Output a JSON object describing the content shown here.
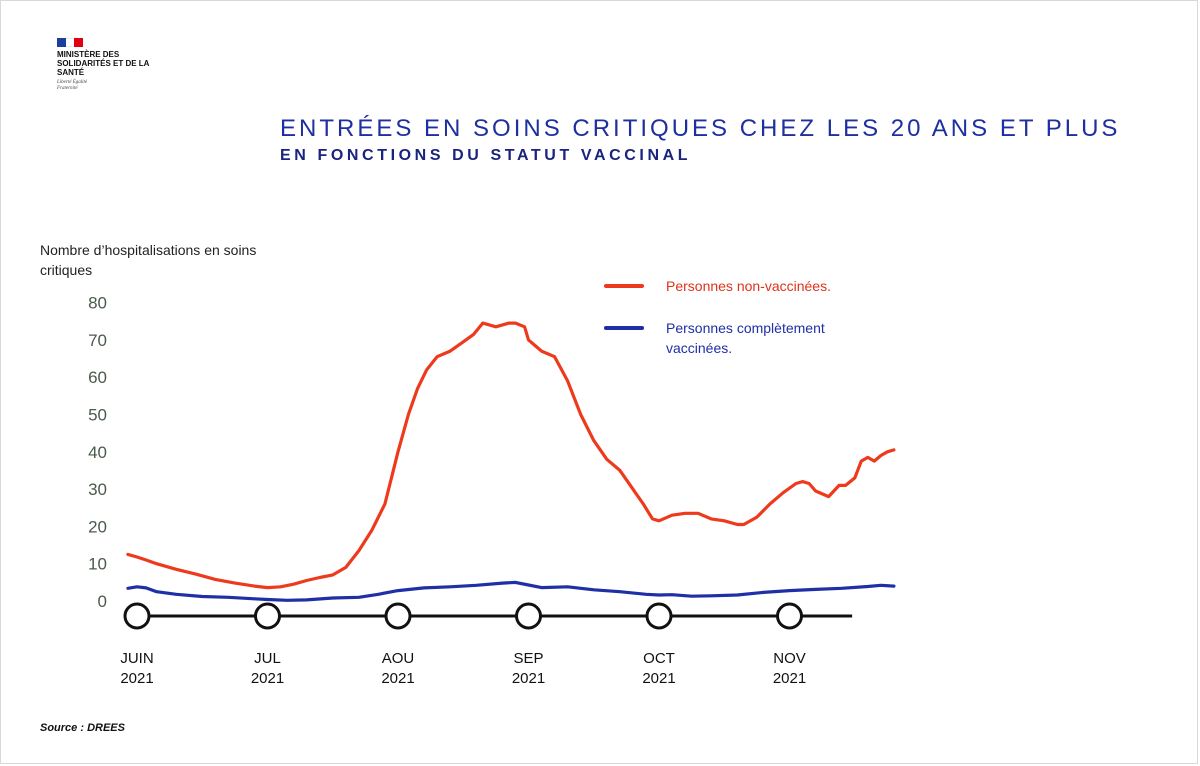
{
  "logo": {
    "ministry": "MINISTÈRE DES SOLIDARITÉS ET DE LA SANTÉ",
    "motto": "Liberté Égalité Fraternité"
  },
  "title": {
    "line1": "ENTRÉES EN SOINS CRITIQUES CHEZ LES 20 ANS ET PLUS",
    "line2": "EN FONCTIONS DU STATUT VACCINAL"
  },
  "source": "Source : DREES",
  "colors": {
    "title": "#1e2f9e",
    "unvaccinated": "#ee3a1c",
    "vaccinated": "#1f2fa5",
    "axis_text": "#4a5a4a"
  },
  "chart_data": {
    "type": "line",
    "ylabel": "Nombre d’hospitalisations en soins critiques",
    "ylim": [
      0,
      80
    ],
    "yticks": [
      80,
      70,
      60,
      50,
      40,
      30,
      20,
      10,
      0
    ],
    "x_range": [
      0.0,
      5.48
    ],
    "xticks": [
      {
        "x": 0,
        "label1": "JUIN",
        "label2": "2021"
      },
      {
        "x": 1,
        "label1": "JUL",
        "label2": "2021"
      },
      {
        "x": 2,
        "label1": "AOU",
        "label2": "2021"
      },
      {
        "x": 3,
        "label1": "SEP",
        "label2": "2021"
      },
      {
        "x": 4,
        "label1": "OCT",
        "label2": "2021"
      },
      {
        "x": 5,
        "label1": "NOV",
        "label2": "2021"
      }
    ],
    "series": [
      {
        "name": "Personnes non-vaccinées.",
        "color": "#ee3a1c",
        "points": [
          [
            -0.07,
            12.5
          ],
          [
            0.0,
            11.8
          ],
          [
            0.07,
            11.0
          ],
          [
            0.15,
            10.0
          ],
          [
            0.3,
            8.5
          ],
          [
            0.45,
            7.2
          ],
          [
            0.6,
            5.8
          ],
          [
            0.75,
            4.8
          ],
          [
            0.9,
            4.0
          ],
          [
            1.0,
            3.6
          ],
          [
            1.1,
            3.8
          ],
          [
            1.2,
            4.5
          ],
          [
            1.3,
            5.5
          ],
          [
            1.4,
            6.3
          ],
          [
            1.5,
            7.0
          ],
          [
            1.6,
            9.0
          ],
          [
            1.7,
            13.5
          ],
          [
            1.8,
            19.0
          ],
          [
            1.9,
            26.0
          ],
          [
            2.0,
            40.0
          ],
          [
            2.08,
            50.0
          ],
          [
            2.15,
            57.0
          ],
          [
            2.22,
            62.0
          ],
          [
            2.3,
            65.5
          ],
          [
            2.4,
            67.0
          ],
          [
            2.5,
            69.5
          ],
          [
            2.58,
            71.5
          ],
          [
            2.65,
            74.5
          ],
          [
            2.75,
            73.5
          ],
          [
            2.85,
            74.5
          ],
          [
            2.9,
            74.5
          ],
          [
            2.97,
            73.5
          ],
          [
            3.0,
            70.0
          ],
          [
            3.05,
            68.5
          ],
          [
            3.1,
            67.0
          ],
          [
            3.2,
            65.5
          ],
          [
            3.3,
            59.0
          ],
          [
            3.4,
            50.0
          ],
          [
            3.5,
            43.0
          ],
          [
            3.6,
            38.0
          ],
          [
            3.7,
            35.0
          ],
          [
            3.8,
            30.0
          ],
          [
            3.88,
            26.0
          ],
          [
            3.95,
            22.0
          ],
          [
            4.0,
            21.5
          ],
          [
            4.1,
            23.0
          ],
          [
            4.2,
            23.5
          ],
          [
            4.3,
            23.5
          ],
          [
            4.4,
            22.0
          ],
          [
            4.5,
            21.5
          ],
          [
            4.6,
            20.5
          ],
          [
            4.65,
            20.5
          ],
          [
            4.75,
            22.5
          ],
          [
            4.85,
            26.0
          ],
          [
            4.95,
            29.0
          ],
          [
            5.05,
            31.5
          ],
          [
            5.1,
            32.0
          ],
          [
            5.15,
            31.5
          ],
          [
            5.2,
            29.5
          ],
          [
            5.3,
            28.0
          ],
          [
            5.38,
            31.0
          ],
          [
            5.43,
            31.0
          ],
          [
            5.5,
            33.0
          ],
          [
            5.55,
            37.5
          ],
          [
            5.6,
            38.5
          ],
          [
            5.65,
            37.5
          ],
          [
            5.7,
            39.0
          ],
          [
            5.75,
            40.0
          ],
          [
            5.8,
            40.5
          ]
        ]
      },
      {
        "name": "Personnes complètement vaccinées.",
        "color": "#1f2fa5",
        "points": [
          [
            -0.07,
            3.4
          ],
          [
            0.0,
            3.8
          ],
          [
            0.07,
            3.5
          ],
          [
            0.15,
            2.5
          ],
          [
            0.3,
            1.8
          ],
          [
            0.5,
            1.2
          ],
          [
            0.7,
            1.0
          ],
          [
            0.9,
            0.6
          ],
          [
            1.0,
            0.4
          ],
          [
            1.15,
            0.2
          ],
          [
            1.3,
            0.3
          ],
          [
            1.5,
            0.8
          ],
          [
            1.7,
            1.0
          ],
          [
            1.85,
            1.8
          ],
          [
            2.0,
            2.8
          ],
          [
            2.2,
            3.5
          ],
          [
            2.4,
            3.8
          ],
          [
            2.6,
            4.2
          ],
          [
            2.8,
            4.8
          ],
          [
            2.9,
            5.0
          ],
          [
            3.0,
            4.3
          ],
          [
            3.1,
            3.6
          ],
          [
            3.3,
            3.8
          ],
          [
            3.5,
            3.0
          ],
          [
            3.7,
            2.5
          ],
          [
            3.9,
            1.8
          ],
          [
            4.0,
            1.6
          ],
          [
            4.1,
            1.7
          ],
          [
            4.25,
            1.3
          ],
          [
            4.4,
            1.4
          ],
          [
            4.6,
            1.6
          ],
          [
            4.8,
            2.3
          ],
          [
            5.0,
            2.8
          ],
          [
            5.2,
            3.1
          ],
          [
            5.4,
            3.4
          ],
          [
            5.6,
            3.9
          ],
          [
            5.7,
            4.2
          ],
          [
            5.8,
            4.0
          ]
        ]
      }
    ]
  }
}
